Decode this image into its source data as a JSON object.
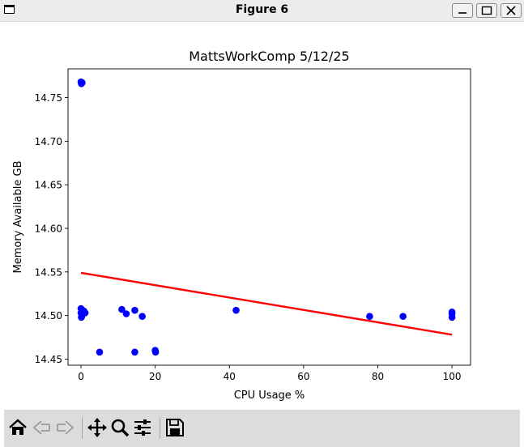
{
  "window": {
    "title": "Figure 6"
  },
  "toolbar": {
    "buttons": [
      "Home",
      "Back",
      "Forward",
      "Pan",
      "Zoom",
      "Configure subplots",
      "Save"
    ]
  },
  "chart_data": {
    "type": "scatter",
    "title": "MattsWorkComp 5/12/25",
    "xlabel": "CPU Usage %",
    "ylabel": "Memory Available GB",
    "xlim": [
      -3.5,
      105
    ],
    "ylim": [
      14.443,
      14.783
    ],
    "xticks": [
      0,
      20,
      40,
      60,
      80,
      100
    ],
    "yticks": [
      14.45,
      14.5,
      14.55,
      14.6,
      14.65,
      14.7,
      14.75
    ],
    "ytick_labels": [
      "14.45",
      "14.50",
      "14.55",
      "14.60",
      "14.65",
      "14.70",
      "14.75"
    ],
    "marker_color": "#0000ff",
    "points": [
      {
        "x": 0,
        "y": 14.768
      },
      {
        "x": 0.3,
        "y": 14.767
      },
      {
        "x": 0.1,
        "y": 14.766
      },
      {
        "x": 0,
        "y": 14.508
      },
      {
        "x": 0.4,
        "y": 14.506
      },
      {
        "x": 0,
        "y": 14.503
      },
      {
        "x": 0.8,
        "y": 14.505
      },
      {
        "x": 0.2,
        "y": 14.499
      },
      {
        "x": 1.1,
        "y": 14.503
      },
      {
        "x": 0.1,
        "y": 14.498
      },
      {
        "x": 5,
        "y": 14.458
      },
      {
        "x": 11,
        "y": 14.507
      },
      {
        "x": 12.2,
        "y": 14.502
      },
      {
        "x": 14.5,
        "y": 14.506
      },
      {
        "x": 14.5,
        "y": 14.458
      },
      {
        "x": 16.5,
        "y": 14.499
      },
      {
        "x": 20,
        "y": 14.46
      },
      {
        "x": 20.1,
        "y": 14.458
      },
      {
        "x": 41.8,
        "y": 14.506
      },
      {
        "x": 77.8,
        "y": 14.499
      },
      {
        "x": 86.8,
        "y": 14.499
      },
      {
        "x": 100,
        "y": 14.504
      },
      {
        "x": 100,
        "y": 14.502
      },
      {
        "x": 100,
        "y": 14.498
      }
    ],
    "trend_line": {
      "color": "#ff0000",
      "x": [
        0,
        100
      ],
      "y": [
        14.549,
        14.478
      ]
    }
  }
}
